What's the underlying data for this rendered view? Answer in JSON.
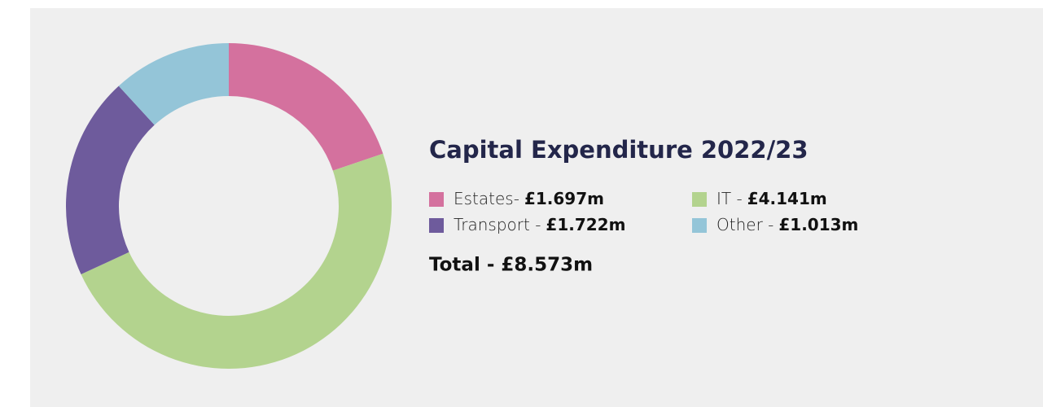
{
  "chart_data": {
    "type": "donut",
    "title": "Capital Expenditure 2022/23",
    "categories": [
      "Estates-",
      "IT -",
      "Transport -",
      "Other -"
    ],
    "values": [
      1.697,
      4.141,
      1.722,
      1.013
    ],
    "value_labels": [
      "£1.697m",
      "£4.141m",
      "£1.722m",
      "£1.013m"
    ],
    "colors": [
      "#d4719e",
      "#b3d38e",
      "#6e5b9c",
      "#94c5d8"
    ],
    "total_label": "Total - £8.573m"
  }
}
